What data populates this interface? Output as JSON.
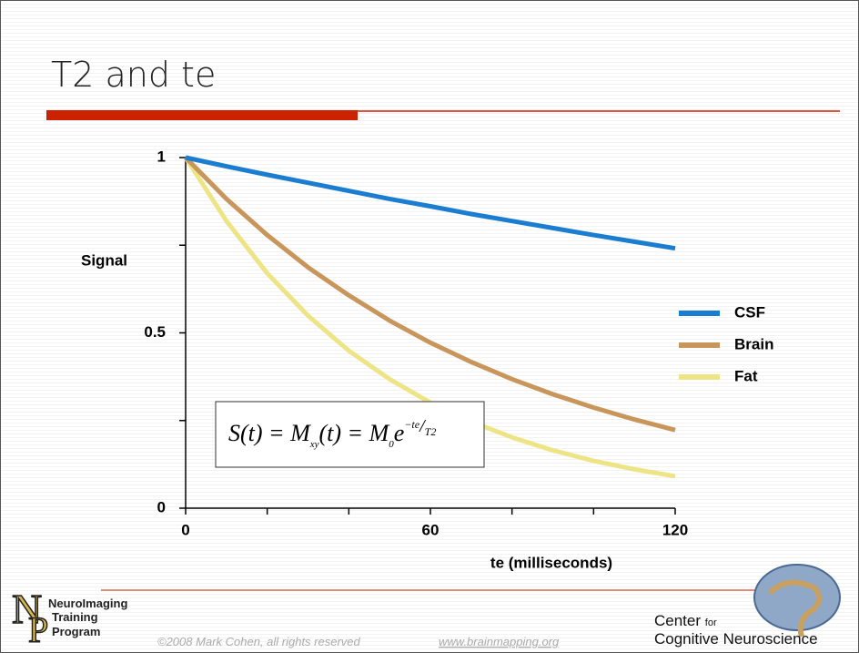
{
  "slide": {
    "title": "T2 and te",
    "logo_left": {
      "letters": [
        "N",
        "P"
      ],
      "lines": [
        "NeuroImaging",
        "Training",
        "Program"
      ]
    },
    "copyright": "©2008 Mark Cohen, all rights reserved",
    "url": "www.brainmapping.org",
    "logo_right": {
      "line1": "Center",
      "line1_small": "for",
      "line2": "Cognitive Neuroscience"
    }
  },
  "chart_data": {
    "type": "line",
    "x": [
      0,
      10,
      20,
      30,
      40,
      50,
      60,
      70,
      80,
      90,
      100,
      110,
      120
    ],
    "series": [
      {
        "name": "CSF",
        "color": "#1a7dd0",
        "values": [
          1,
          0.975,
          0.951,
          0.928,
          0.905,
          0.882,
          0.861,
          0.839,
          0.819,
          0.799,
          0.779,
          0.76,
          0.741
        ]
      },
      {
        "name": "Brain",
        "color": "#c8955a",
        "values": [
          1,
          0.882,
          0.779,
          0.687,
          0.607,
          0.535,
          0.472,
          0.417,
          0.368,
          0.325,
          0.287,
          0.253,
          0.223
        ]
      },
      {
        "name": "Fat",
        "color": "#ede486",
        "values": [
          1,
          0.819,
          0.67,
          0.549,
          0.449,
          0.368,
          0.301,
          0.247,
          0.202,
          0.165,
          0.135,
          0.111,
          0.091
        ]
      }
    ],
    "xlabel": "te (milliseconds)",
    "ylabel": "Signal",
    "xlim": [
      0,
      120
    ],
    "ylim": [
      0,
      1
    ],
    "xticks": [
      0,
      60,
      120
    ],
    "xminor_ticks": [
      20,
      40,
      80,
      100
    ],
    "yticks": [
      0,
      0.5,
      1
    ],
    "yminor_ticks": [
      0.25,
      0.75
    ],
    "grid": false,
    "legend": "right",
    "formula": {
      "lhs": "S(t) = M",
      "sub1": "xy",
      "mid": "(t) = M",
      "sub2": "0",
      "base": "e",
      "exp_num": "−te",
      "exp_slash": "/",
      "exp_den": "T2"
    }
  }
}
